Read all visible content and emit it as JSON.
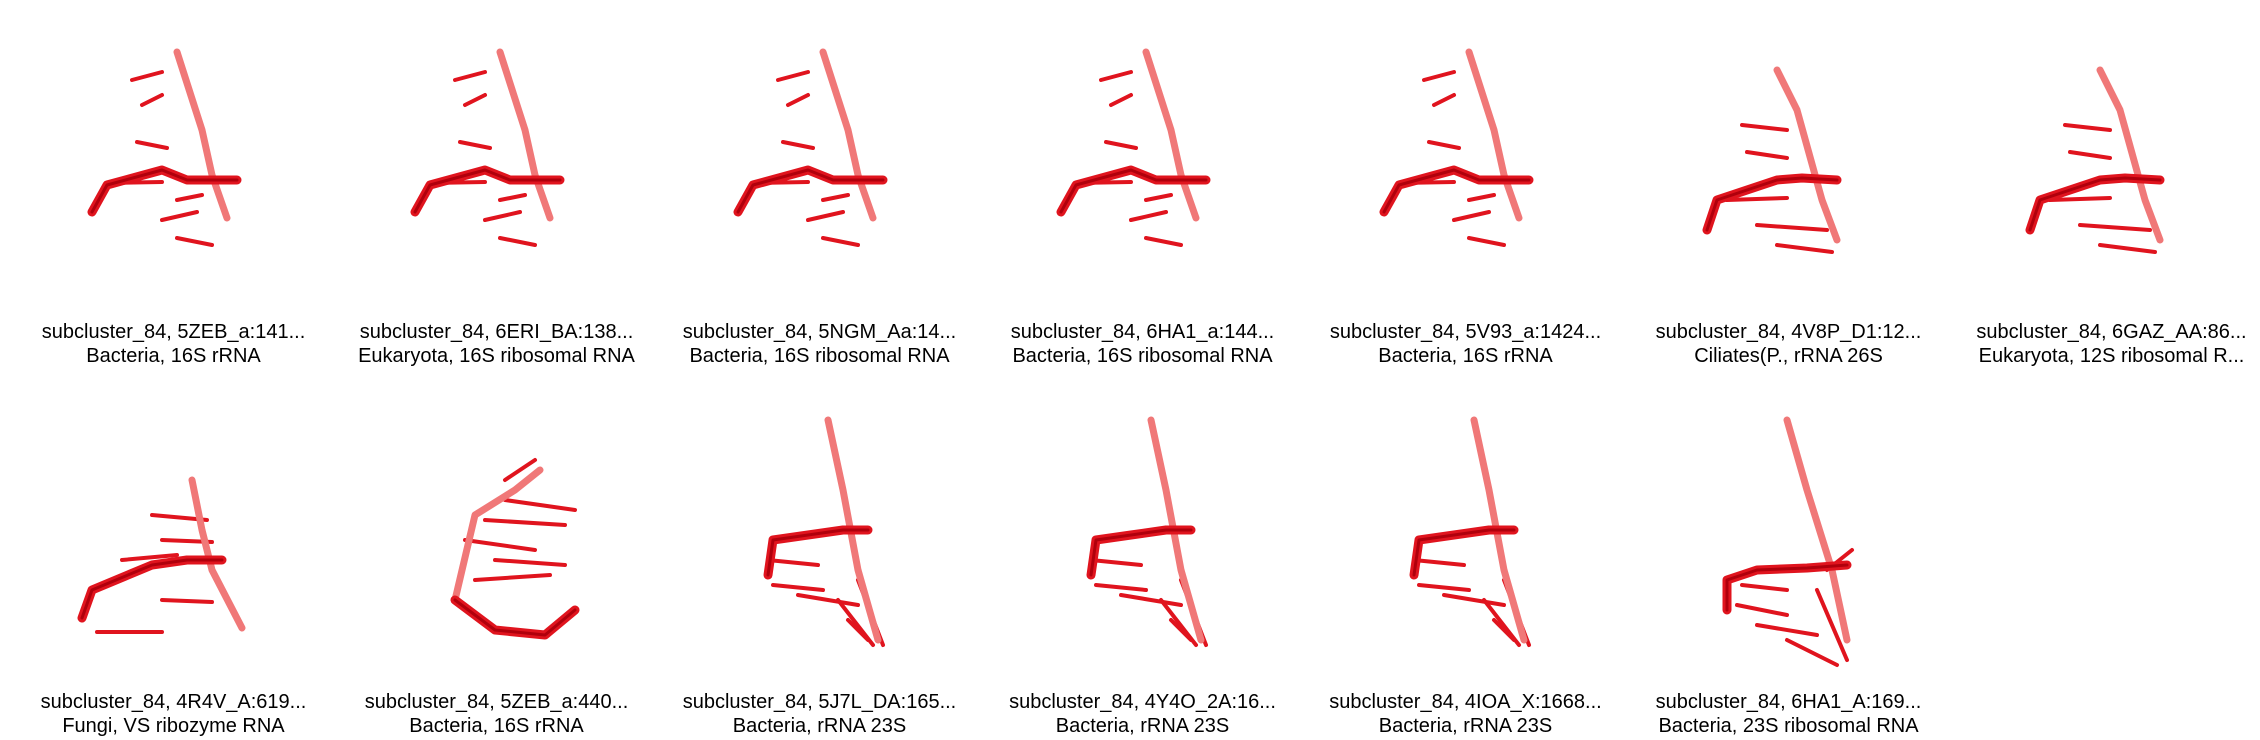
{
  "structures": [
    {
      "id": "subcluster_84, 5ZEB_a:141...",
      "desc": "Bacteria, 16S rRNA",
      "variant": "a"
    },
    {
      "id": "subcluster_84, 6ERI_BA:138...",
      "desc": "Eukaryota, 16S ribosomal RNA",
      "variant": "a"
    },
    {
      "id": "subcluster_84, 5NGM_Aa:14...",
      "desc": "Bacteria, 16S ribosomal RNA",
      "variant": "a"
    },
    {
      "id": "subcluster_84, 6HA1_a:144...",
      "desc": "Bacteria, 16S ribosomal RNA",
      "variant": "a"
    },
    {
      "id": "subcluster_84, 5V93_a:1424...",
      "desc": "Bacteria, 16S rRNA",
      "variant": "a"
    },
    {
      "id": "subcluster_84, 4V8P_D1:12...",
      "desc": "Ciliates(P., rRNA 26S",
      "variant": "b"
    },
    {
      "id": "subcluster_84, 6GAZ_AA:86...",
      "desc": "Eukaryota, 12S ribosomal R...",
      "variant": "b"
    },
    {
      "id": "subcluster_84, 4R4V_A:619...",
      "desc": "Fungi, VS ribozyme RNA",
      "variant": "c"
    },
    {
      "id": "subcluster_84, 5ZEB_a:440...",
      "desc": "Bacteria, 16S rRNA",
      "variant": "d"
    },
    {
      "id": "subcluster_84, 5J7L_DA:165...",
      "desc": "Bacteria, rRNA 23S",
      "variant": "e"
    },
    {
      "id": "subcluster_84, 4Y4O_2A:16...",
      "desc": "Bacteria, rRNA 23S",
      "variant": "e"
    },
    {
      "id": "subcluster_84, 4IOA_X:1668...",
      "desc": "Bacteria, rRNA 23S",
      "variant": "e"
    },
    {
      "id": "subcluster_84, 6HA1_A:169...",
      "desc": "Bacteria, 23S ribosomal RNA",
      "variant": "f"
    }
  ],
  "colors": {
    "dark": "#b0000c",
    "main": "#e0141e",
    "light": "#f07878"
  }
}
